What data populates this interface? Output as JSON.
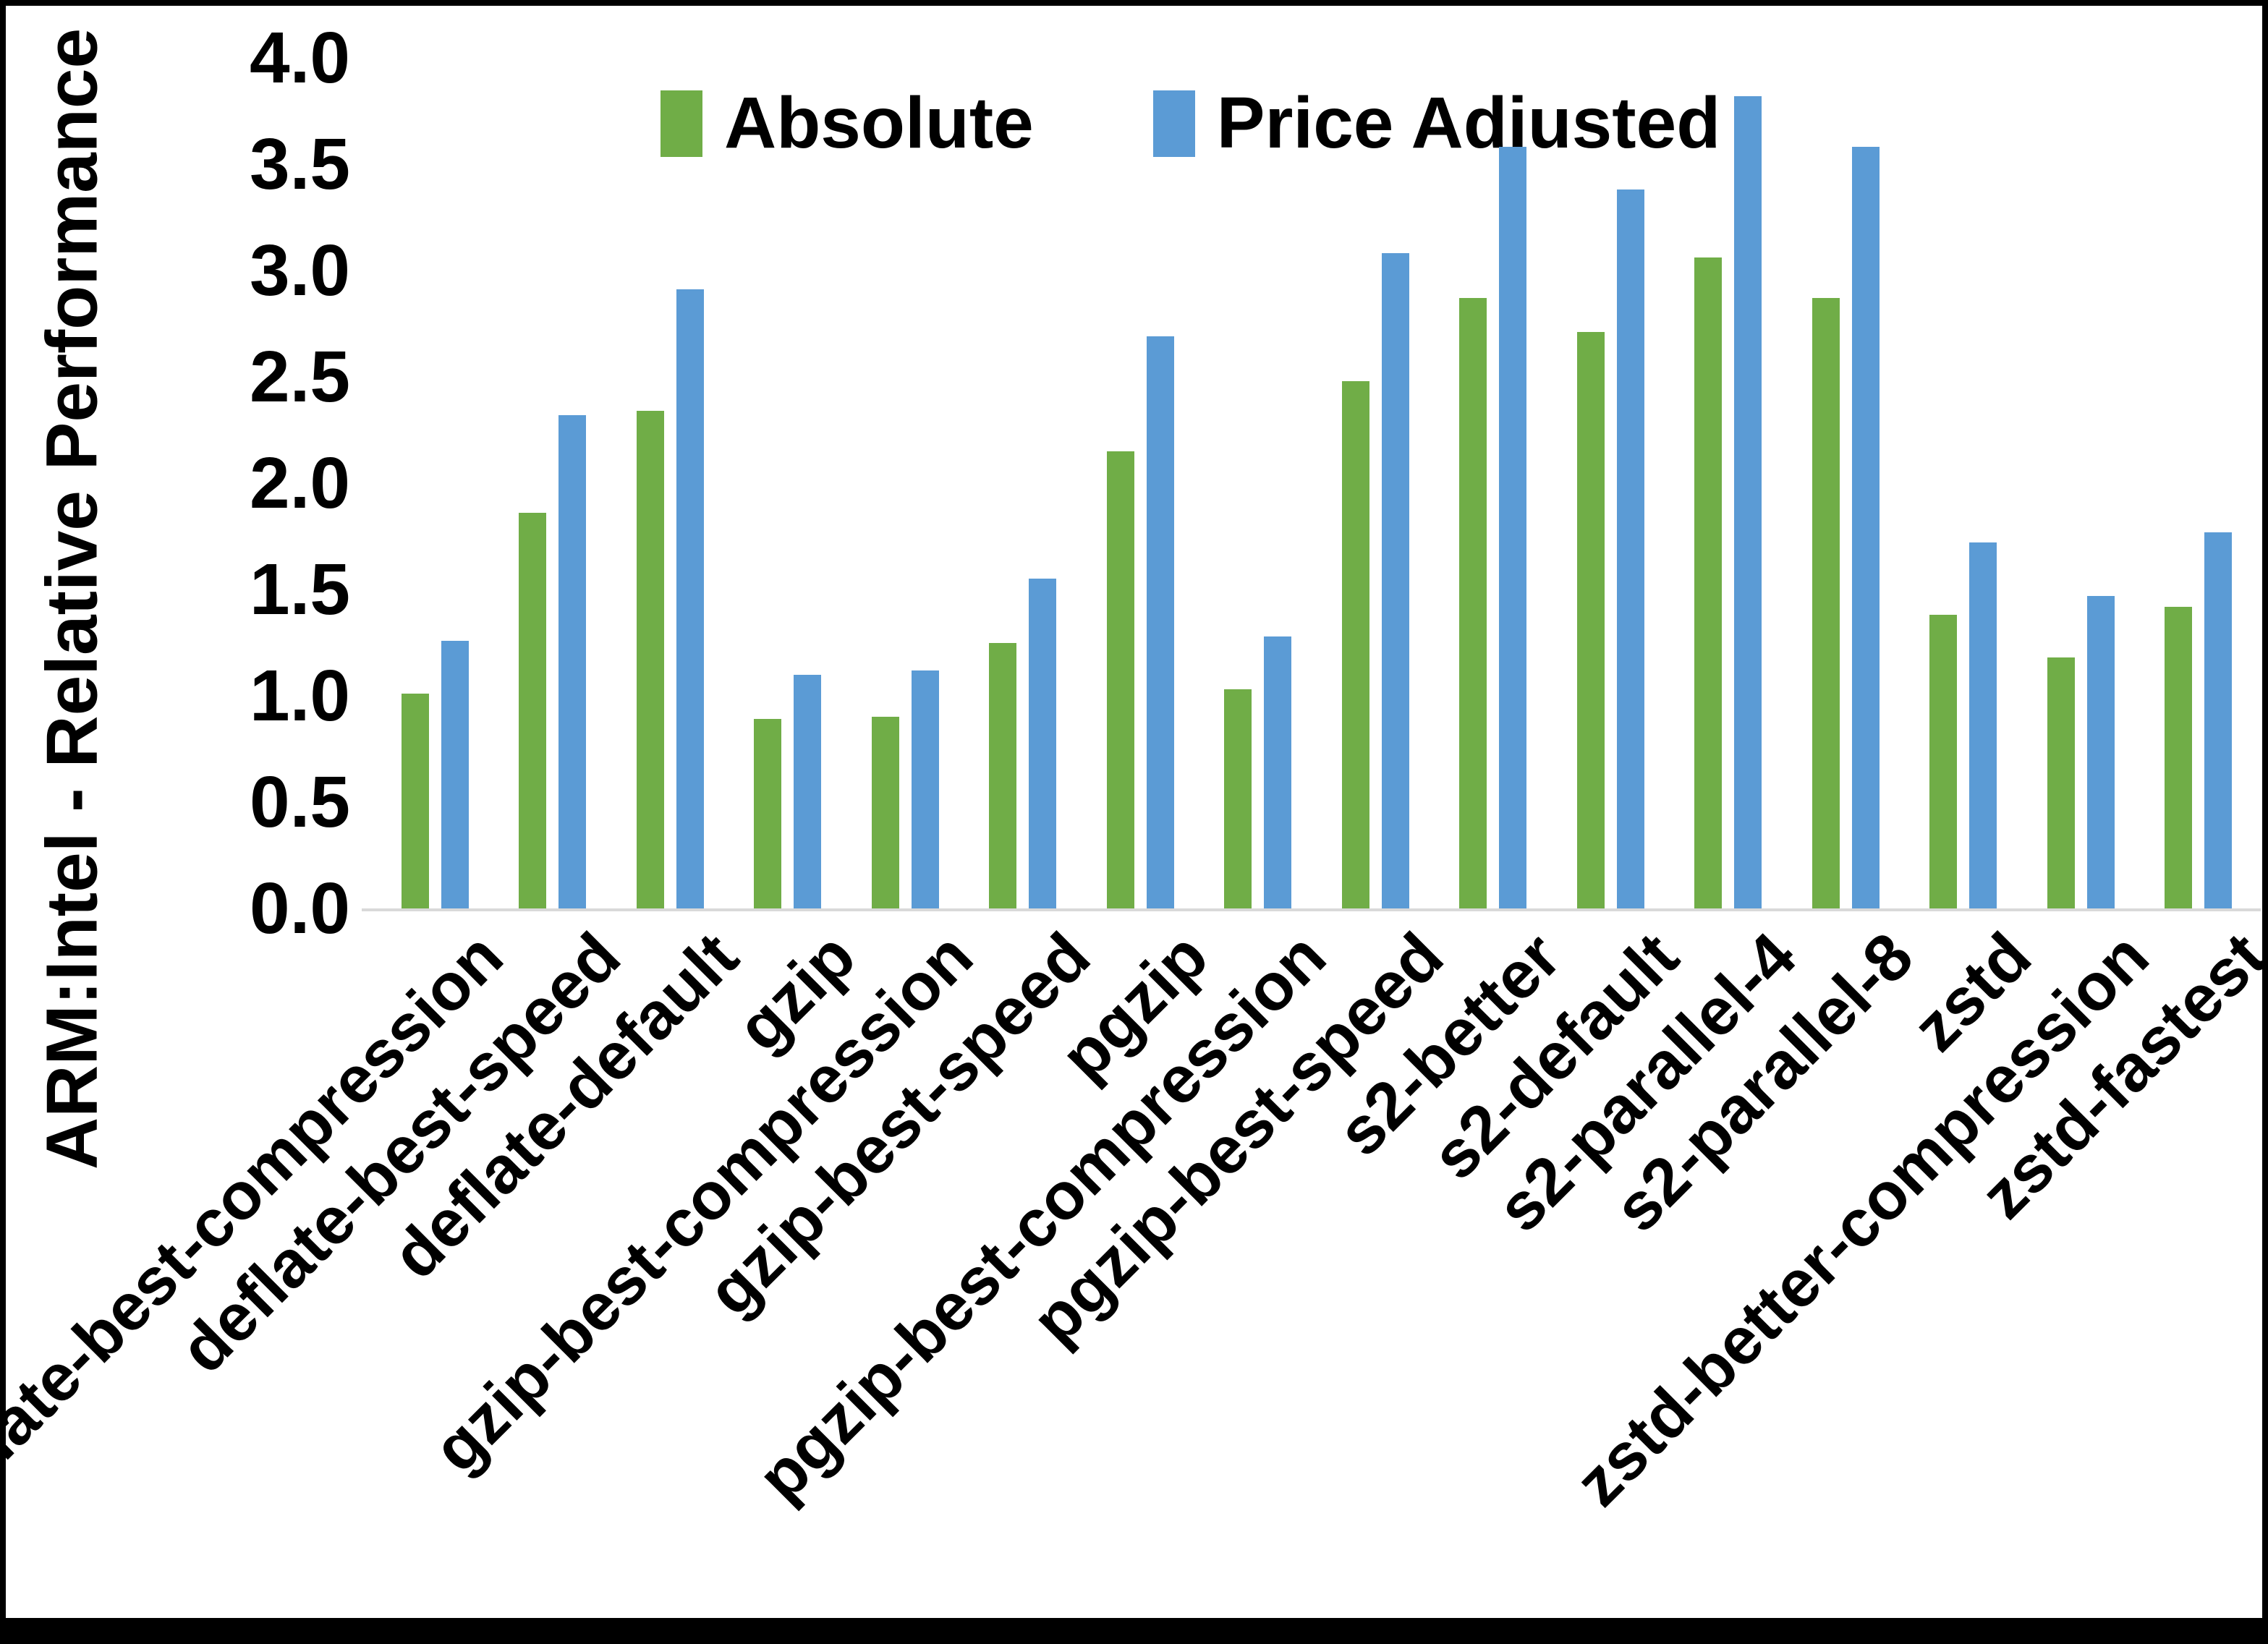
{
  "chart_data": {
    "type": "bar",
    "title": "",
    "xlabel": "",
    "ylabel": "ARM:Intel - Relative Performance",
    "ylim": [
      0.0,
      4.0
    ],
    "ytick_labels": [
      "0.0",
      "0.5",
      "1.0",
      "1.5",
      "2.0",
      "2.5",
      "3.0",
      "3.5",
      "4.0"
    ],
    "grid": false,
    "legend_position": "top-center",
    "categories": [
      "deflate-best-compression",
      "deflate-best-speed",
      "deflate-default",
      "gzip",
      "gzip-best-compression",
      "gzip-best-speed",
      "pgzip",
      "pgzip-best-compression",
      "pgzip-best-speed",
      "s2-better",
      "s2-default",
      "s2-parallel-4",
      "s2-parallel-8",
      "zstd",
      "zstd-better-compression",
      "zstd-fastest"
    ],
    "series": [
      {
        "name": "Absolute",
        "color": "#70AD47",
        "values": [
          1.01,
          1.86,
          2.34,
          0.89,
          0.9,
          1.25,
          2.15,
          1.03,
          2.48,
          2.87,
          2.71,
          3.06,
          2.87,
          1.38,
          1.18,
          1.42
        ]
      },
      {
        "name": "Price Adjusted",
        "color": "#5B9BD5",
        "values": [
          1.26,
          2.32,
          2.91,
          1.1,
          1.12,
          1.55,
          2.69,
          1.28,
          3.08,
          3.58,
          3.38,
          3.82,
          3.58,
          1.72,
          1.47,
          1.77
        ]
      }
    ]
  },
  "colors": {
    "background": "#FFFFFF",
    "frame_border": "#000000",
    "axis_line": "#D9D9D9",
    "text": "#000000",
    "absolute_series": "#70AD47",
    "price_adjusted_series": "#5B9BD5"
  }
}
